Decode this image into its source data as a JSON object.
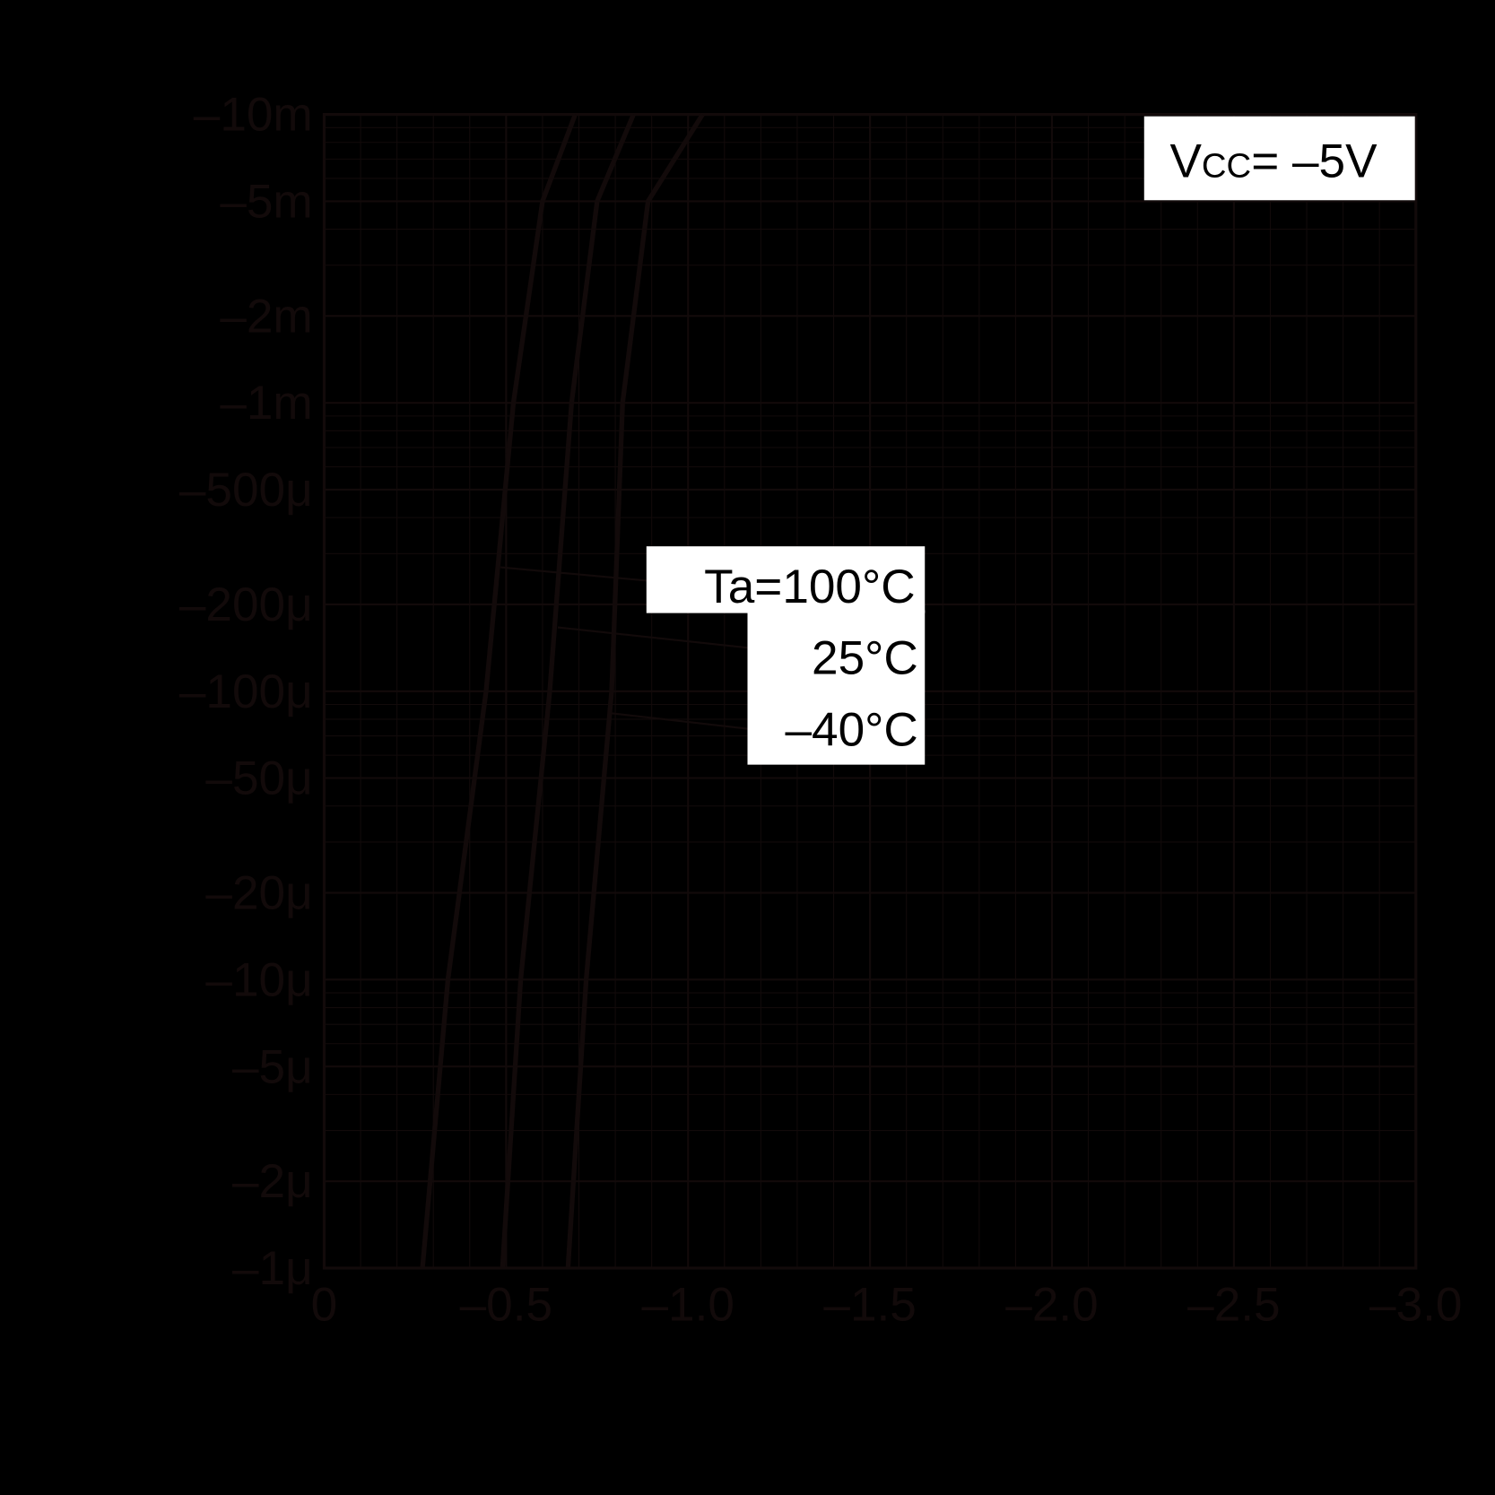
{
  "chart_data": {
    "type": "line",
    "title": "",
    "xlabel": "",
    "ylabel": "",
    "x_scale": "linear",
    "y_scale": "log",
    "xlim": [
      0,
      -3.0
    ],
    "ylim": [
      -1e-06,
      -0.01
    ],
    "grid": true,
    "x_ticks": [
      "0",
      "–0.5",
      "–1.0",
      "–1.5",
      "–2.0",
      "–2.5",
      "–3.0"
    ],
    "x_tick_values": [
      0,
      -0.5,
      -1.0,
      -1.5,
      -2.0,
      -2.5,
      -3.0
    ],
    "y_ticks": [
      "–10m",
      "–5m",
      "–2m",
      "–1m",
      "–500μ",
      "–200μ",
      "–100μ",
      "–50μ",
      "–20μ",
      "–10μ",
      "–5μ",
      "–2μ",
      "–1μ"
    ],
    "y_tick_values": [
      -0.01,
      -0.005,
      -0.002,
      -0.001,
      -0.0005,
      -0.0002,
      -0.0001,
      -5e-05,
      -2e-05,
      -1e-05,
      -5e-06,
      -2e-06,
      -1e-06
    ],
    "annotation": {
      "prefix": "V",
      "sub": "CC",
      "suffix": "= –5V"
    },
    "series": [
      {
        "name": "Ta=100°C",
        "x": [
          -0.27,
          -0.34,
          -0.445,
          -0.52,
          -0.6,
          -0.69
        ],
        "y": [
          -1e-06,
          -1e-05,
          -0.0001,
          -0.001,
          -0.005,
          -0.01
        ]
      },
      {
        "name": "25°C",
        "x": [
          -0.49,
          -0.54,
          -0.62,
          -0.68,
          -0.75,
          -0.85
        ],
        "y": [
          -1e-06,
          -1e-05,
          -0.0001,
          -0.001,
          -0.005,
          -0.01
        ]
      },
      {
        "name": "–40°C",
        "x": [
          -0.67,
          -0.72,
          -0.79,
          -0.82,
          -0.89,
          -1.04
        ],
        "y": [
          -1e-06,
          -1e-05,
          -0.0001,
          -0.001,
          -0.005,
          -0.01
        ]
      }
    ],
    "colors": {
      "background": "#000000",
      "ink": "#120a0a",
      "label_box": "#ffffff",
      "label_text": "#000000"
    }
  }
}
